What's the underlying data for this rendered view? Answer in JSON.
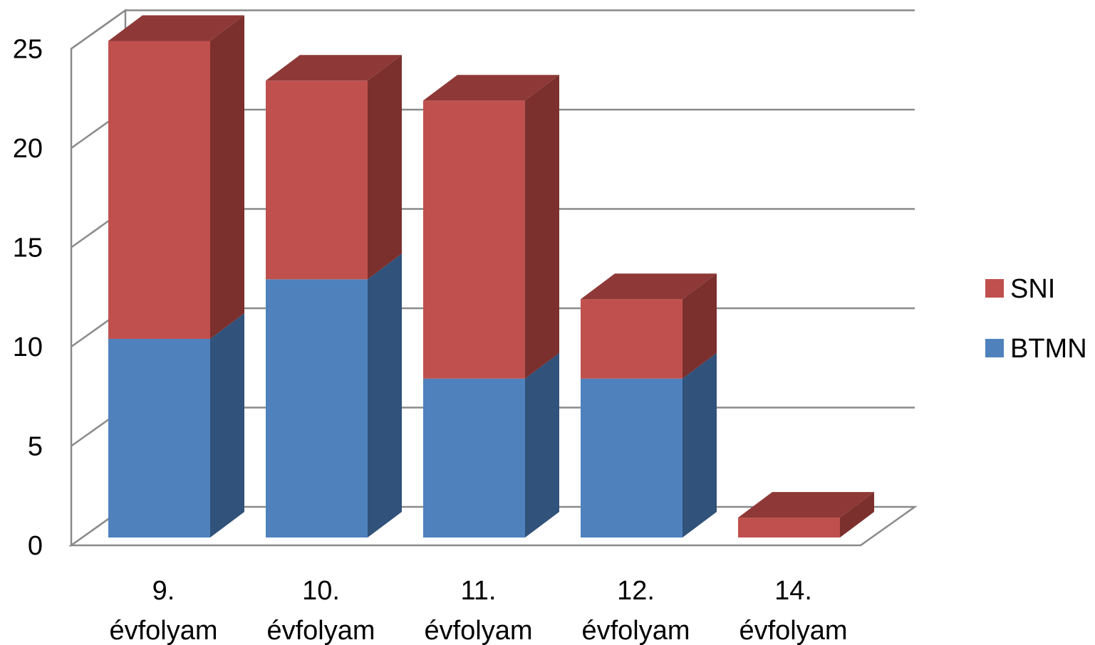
{
  "chart_data": {
    "type": "bar",
    "stacked": true,
    "three_d": true,
    "categories": [
      "9. évfolyam",
      "10. évfolyam",
      "11. évfolyam",
      "12. évfolyam",
      "14. évfolyam"
    ],
    "category_lines": [
      [
        "9.",
        "évfolyam"
      ],
      [
        "10.",
        "évfolyam"
      ],
      [
        "11.",
        "évfolyam"
      ],
      [
        "12.",
        "évfolyam"
      ],
      [
        "14.",
        "évfolyam"
      ]
    ],
    "series": [
      {
        "name": "BTMN",
        "values": [
          10,
          13,
          8,
          8,
          0
        ],
        "color": "#4F81BD",
        "side_color": "#31527A",
        "top_color": "#3E6598"
      },
      {
        "name": "SNI",
        "values": [
          15,
          10,
          14,
          4,
          1
        ],
        "color": "#C0504D",
        "side_color": "#7B302E",
        "top_color": "#8E3937"
      }
    ],
    "y_ticks": [
      "0",
      "5",
      "10",
      "15",
      "20",
      "25"
    ],
    "ylim": [
      0,
      25
    ],
    "grid": true,
    "legend_position": "right",
    "title": "",
    "xlabel": "",
    "ylabel": ""
  }
}
